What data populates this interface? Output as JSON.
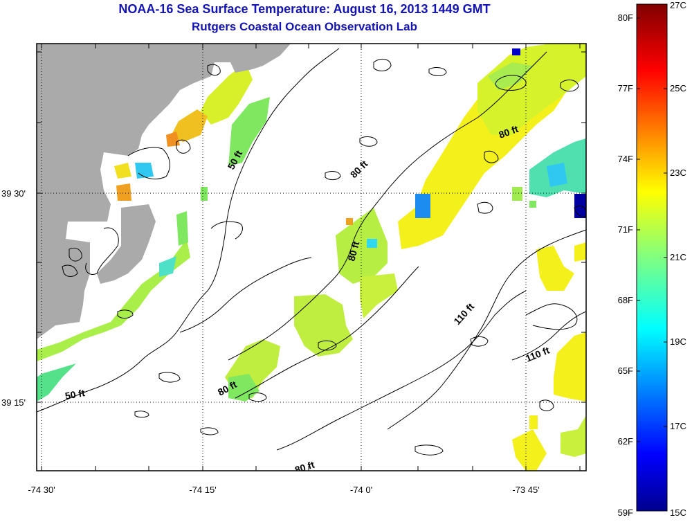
{
  "header": {
    "title": "NOAA-16 Sea Surface Temperature:  August 16, 2013 1449 GMT",
    "subtitle": "Rutgers Coastal Ocean Observation Lab"
  },
  "map": {
    "x_ticks": [
      "-74 30'",
      "-74 15'",
      "-74 0'",
      "-73 45'"
    ],
    "y_ticks": [
      "39 30'",
      "39 15'"
    ],
    "contour_labels": [
      "50 ft",
      "50 ft",
      "80 ft",
      "80 ft",
      "80 ft",
      "80 ft",
      "80 ft",
      "110 ft",
      "110 ft"
    ],
    "colors": {
      "land": "#aaaaaa",
      "frame": "#000000",
      "grid": "#000000"
    }
  },
  "colorbar": {
    "fahrenheit_labels": [
      "80F",
      "77F",
      "74F",
      "71F",
      "68F",
      "65F",
      "62F",
      "59F"
    ],
    "celsius_labels": [
      "27C",
      "25C",
      "23C",
      "21C",
      "19C",
      "17C",
      "15C"
    ],
    "range_c": [
      15,
      27
    ],
    "colormap": "jet"
  }
}
